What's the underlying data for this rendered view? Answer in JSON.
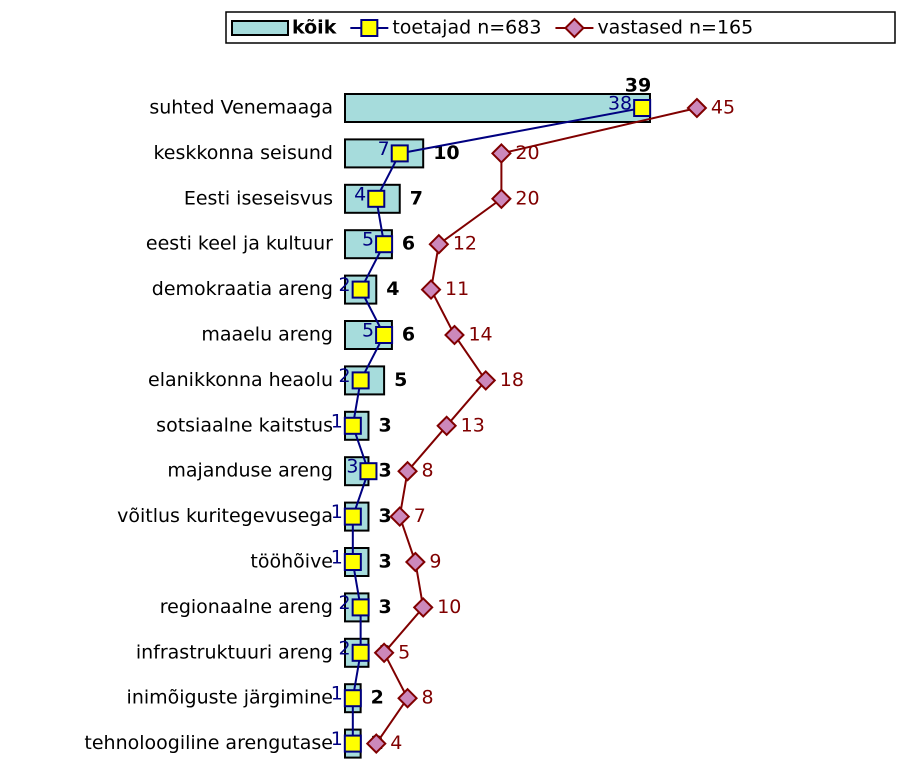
{
  "chart_data": {
    "type": "bar",
    "orientation": "horizontal",
    "categories": [
      "suhted Venemaaga",
      "keskkonna seisund",
      "Eesti iseseisvus",
      "eesti keel ja kultuur",
      "demokraatia areng",
      "maaelu areng",
      "elanikkonna heaolu",
      "sotsiaalne kaitstus",
      "majanduse areng",
      "võitlus kuritegevusega",
      "tööhõive",
      "regionaalne areng",
      "infrastruktuuri areng",
      "inimõiguste järgimine",
      "tehnoloogiline arengutase"
    ],
    "series": [
      {
        "name": "kõik",
        "type": "bar",
        "color": "#a6dcdc",
        "values": [
          39,
          10,
          7,
          6,
          4,
          6,
          5,
          3,
          3,
          3,
          3,
          3,
          3,
          2,
          2
        ]
      },
      {
        "name": "toetajad n=683",
        "type": "line",
        "marker": "square",
        "color": "#000080",
        "marker_color": "#ffff00",
        "values": [
          38,
          7,
          4,
          5,
          2,
          5,
          2,
          1,
          3,
          1,
          1,
          2,
          2,
          1,
          1
        ]
      },
      {
        "name": "vastased n=165",
        "type": "line",
        "marker": "diamond",
        "color": "#800000",
        "marker_color": "#cc88bb",
        "values": [
          45,
          20,
          20,
          12,
          11,
          14,
          18,
          13,
          8,
          7,
          9,
          10,
          5,
          8,
          4
        ]
      }
    ],
    "legend": "top-right"
  }
}
